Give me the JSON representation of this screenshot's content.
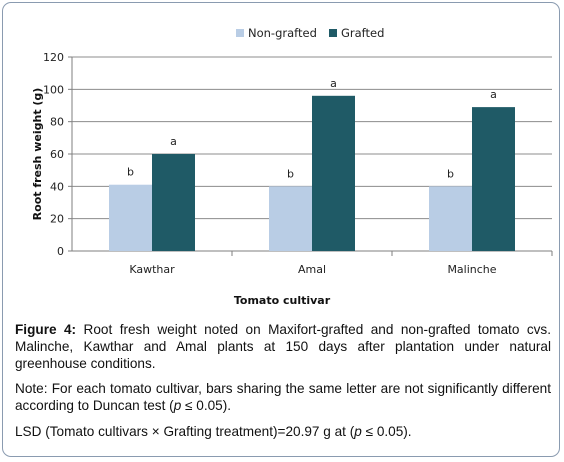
{
  "chart_data": {
    "type": "bar",
    "categories": [
      "Kawthar",
      "Amal",
      "Malinche"
    ],
    "series": [
      {
        "name": "Non-grafted",
        "color": "#b9cde5",
        "values": [
          41,
          40,
          40
        ],
        "letters": [
          "b",
          "b",
          "b"
        ]
      },
      {
        "name": "Grafted",
        "color": "#1f5a66",
        "values": [
          60,
          96,
          89
        ],
        "letters": [
          "a",
          "a",
          "a"
        ]
      }
    ],
    "xlabel": "Tomato cultivar",
    "ylabel": "Root fresh weight (g)",
    "ylim": [
      0,
      120
    ],
    "yticks": [
      0,
      20,
      40,
      60,
      80,
      100,
      120
    ],
    "grid": true,
    "legend_position": "top-center"
  },
  "caption": {
    "figure_label": "Figure 4:",
    "figure_text": "Root fresh weight noted on Maxifort-grafted and non-grafted tomato cvs. Malinche, Kawthar and Amal plants at 150 days after plantation under natural greenhouse conditions.",
    "note_prefix": "Note: For each tomato cultivar, bars sharing the same letter are not significantly different according to Duncan test (",
    "note_p": "p",
    "note_suffix": " ≤ 0.05).",
    "lsd_prefix": "LSD (Tomato cultivars × Grafting treatment)=20.97 g at (",
    "lsd_p": "p",
    "lsd_suffix": " ≤ 0.05)."
  }
}
